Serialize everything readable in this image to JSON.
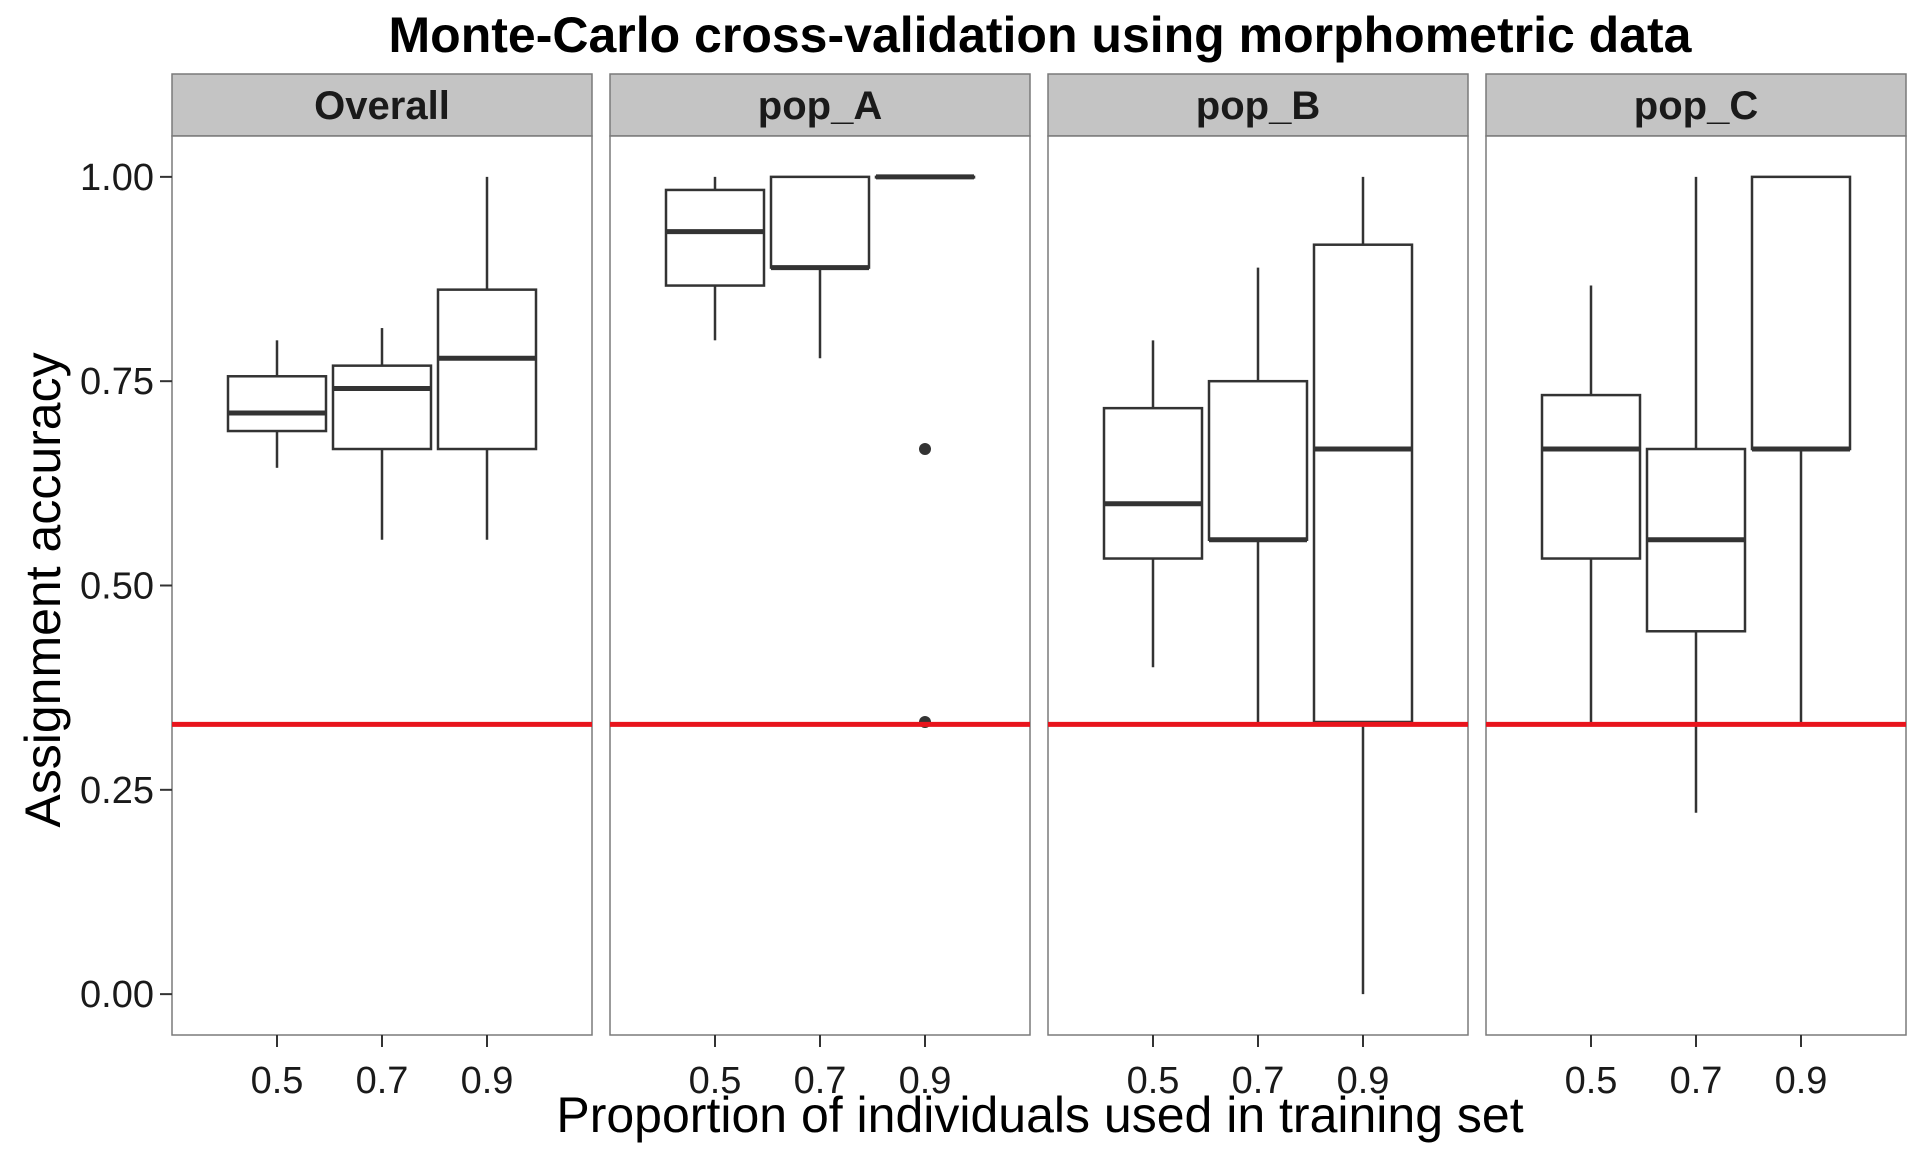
{
  "chart_data": {
    "type": "boxplot",
    "title": "Monte-Carlo cross-validation using morphometric data",
    "xlabel": "Proportion of individuals used in training set",
    "ylabel": "Assignment accuracy",
    "ylim": [
      -0.05,
      1.05
    ],
    "yticks": [
      {
        "value": 0.0,
        "label": "0.00"
      },
      {
        "value": 0.25,
        "label": "0.25"
      },
      {
        "value": 0.5,
        "label": "0.50"
      },
      {
        "value": 0.75,
        "label": "0.75"
      },
      {
        "value": 1.0,
        "label": "1.00"
      }
    ],
    "categories": [
      "0.5",
      "0.7",
      "0.9"
    ],
    "reference_line": {
      "value": 0.33,
      "color": "#e8141c"
    },
    "grid": false,
    "facets": [
      {
        "label": "Overall",
        "boxes": [
          {
            "x": "0.5",
            "min": 0.644,
            "q1": 0.689,
            "median": 0.711,
            "q3": 0.756,
            "max": 0.8,
            "outliers": []
          },
          {
            "x": "0.7",
            "min": 0.556,
            "q1": 0.667,
            "median": 0.741,
            "q3": 0.769,
            "max": 0.815,
            "outliers": []
          },
          {
            "x": "0.9",
            "min": 0.556,
            "q1": 0.667,
            "median": 0.778,
            "q3": 0.862,
            "max": 1.0,
            "outliers": []
          }
        ]
      },
      {
        "label": "pop_A",
        "boxes": [
          {
            "x": "0.5",
            "min": 0.8,
            "q1": 0.867,
            "median": 0.933,
            "q3": 0.984,
            "max": 1.0,
            "outliers": []
          },
          {
            "x": "0.7",
            "min": 0.778,
            "q1": 0.889,
            "median": 0.889,
            "q3": 1.0,
            "max": 1.0,
            "outliers": []
          },
          {
            "x": "0.9",
            "min": 1.0,
            "q1": 1.0,
            "median": 1.0,
            "q3": 1.0,
            "max": 1.0,
            "outliers": [
              0.667,
              0.333
            ]
          }
        ]
      },
      {
        "label": "pop_B",
        "boxes": [
          {
            "x": "0.5",
            "min": 0.4,
            "q1": 0.533,
            "median": 0.6,
            "q3": 0.717,
            "max": 0.8,
            "outliers": []
          },
          {
            "x": "0.7",
            "min": 0.333,
            "q1": 0.556,
            "median": 0.556,
            "q3": 0.75,
            "max": 0.889,
            "outliers": []
          },
          {
            "x": "0.9",
            "min": 0.0,
            "q1": 0.333,
            "median": 0.667,
            "q3": 0.917,
            "max": 1.0,
            "outliers": []
          }
        ]
      },
      {
        "label": "pop_C",
        "boxes": [
          {
            "x": "0.5",
            "min": 0.333,
            "q1": 0.533,
            "median": 0.667,
            "q3": 0.733,
            "max": 0.867,
            "outliers": []
          },
          {
            "x": "0.7",
            "min": 0.222,
            "q1": 0.444,
            "median": 0.556,
            "q3": 0.667,
            "max": 1.0,
            "outliers": []
          },
          {
            "x": "0.9",
            "min": 0.333,
            "q1": 0.667,
            "median": 0.667,
            "q3": 1.0,
            "max": 1.0,
            "outliers": []
          }
        ]
      }
    ]
  }
}
